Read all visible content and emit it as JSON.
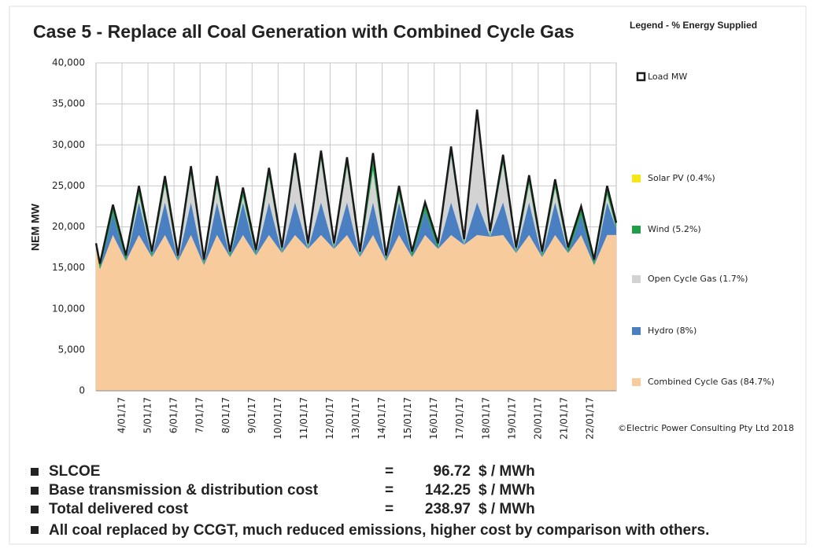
{
  "chart_data": {
    "type": "stacked-area",
    "title": "Case 5 - Replace all Coal Generation with Combined Cycle Gas",
    "y_label": "NEM MW",
    "legend_title": "Legend - % Energy Supplied",
    "credit": "©Electric Power Consulting Pty Ltd 2018",
    "xlim": [
      3,
      23
    ],
    "xticks": [
      {
        "value": 4,
        "label": "4/01/17"
      },
      {
        "value": 5,
        "label": "5/01/17"
      },
      {
        "value": 6,
        "label": "6/01/17"
      },
      {
        "value": 7,
        "label": "7/01/17"
      },
      {
        "value": 8,
        "label": "8/01/17"
      },
      {
        "value": 9,
        "label": "9/01/17"
      },
      {
        "value": 10,
        "label": "10/01/17"
      },
      {
        "value": 11,
        "label": "11/01/17"
      },
      {
        "value": 12,
        "label": "12/01/17"
      },
      {
        "value": 13,
        "label": "13/01/17"
      },
      {
        "value": 14,
        "label": "14/01/17"
      },
      {
        "value": 15,
        "label": "15/01/17"
      },
      {
        "value": 16,
        "label": "16/01/17"
      },
      {
        "value": 17,
        "label": "17/01/17"
      },
      {
        "value": 18,
        "label": "18/01/17"
      },
      {
        "value": 19,
        "label": "19/01/17"
      },
      {
        "value": 20,
        "label": "20/01/17"
      },
      {
        "value": 21,
        "label": "21/01/17"
      },
      {
        "value": 22,
        "label": "22/01/17"
      }
    ],
    "ylim": [
      0,
      40000
    ],
    "yticks": [
      0,
      {
        "value": 5000,
        "label": "5,000"
      },
      {
        "value": 10000,
        "label": "10,000"
      },
      {
        "value": 15000,
        "label": "15,000"
      },
      {
        "value": 20000,
        "label": "20,000"
      },
      {
        "value": 25000,
        "label": "25,000"
      },
      {
        "value": 30000,
        "label": "30,000"
      },
      {
        "value": 35000,
        "label": "35,000"
      },
      {
        "value": 40000,
        "label": "40,000"
      }
    ],
    "grid": true,
    "x": [
      3,
      3.15,
      3.65,
      4.15,
      4.65,
      5.15,
      5.65,
      6.15,
      6.65,
      7.15,
      7.65,
      8.15,
      8.65,
      9.15,
      9.65,
      10.15,
      10.65,
      11.15,
      11.65,
      12.15,
      12.65,
      13.15,
      13.65,
      14.15,
      14.65,
      15.15,
      15.65,
      16.15,
      16.65,
      17.15,
      17.65,
      18.15,
      18.65,
      19.15,
      19.65,
      20.15,
      20.65,
      21.15,
      21.65,
      22.15,
      22.65,
      23
    ],
    "series": [
      {
        "name": "Combined Cycle Gas (84.7%)",
        "color": "#f8cb9c",
        "values": [
          17300,
          14800,
          19000,
          15800,
          19000,
          16300,
          19000,
          15800,
          19000,
          15300,
          19000,
          16300,
          19000,
          16500,
          19000,
          16800,
          19000,
          17300,
          19000,
          17300,
          19000,
          16300,
          19000,
          15800,
          19000,
          16300,
          19000,
          17300,
          19000,
          17800,
          19000,
          18800,
          19000,
          16800,
          19000,
          16300,
          19000,
          16800,
          19000,
          15300,
          19000,
          19000
        ]
      },
      {
        "name": "Hydro (8%)",
        "color": "#4a7fc1",
        "values": [
          0,
          0,
          2600,
          0,
          4000,
          0,
          4000,
          0,
          4000,
          0,
          4000,
          0,
          4000,
          0,
          4000,
          0,
          4000,
          0,
          4000,
          0,
          4000,
          0,
          4000,
          0,
          4000,
          0,
          2900,
          0,
          4000,
          0,
          4000,
          0,
          4000,
          0,
          4000,
          0,
          4000,
          0,
          2400,
          0,
          4000,
          800
        ]
      },
      {
        "name": "Open Cycle Gas (1.7%)",
        "color": "#d3d3d3",
        "values": [
          0,
          0,
          0,
          0,
          900,
          0,
          2100,
          0,
          3300,
          0,
          2100,
          0,
          700,
          0,
          3100,
          0,
          4900,
          0,
          5200,
          0,
          4400,
          0,
          3900,
          0,
          900,
          0,
          0,
          0,
          5700,
          0,
          10200,
          0,
          4700,
          0,
          2200,
          0,
          1700,
          0,
          0,
          0,
          900,
          0
        ]
      },
      {
        "name": "Wind (5.2%)",
        "color": "#1f9e48",
        "values": [
          700,
          700,
          1000,
          700,
          1000,
          700,
          1000,
          700,
          1000,
          700,
          1000,
          700,
          1000,
          700,
          1000,
          700,
          1000,
          700,
          1000,
          700,
          1000,
          700,
          2000,
          700,
          1000,
          700,
          1000,
          700,
          1000,
          700,
          1000,
          700,
          1000,
          700,
          1000,
          700,
          1000,
          700,
          1000,
          700,
          1000,
          700
        ]
      },
      {
        "name": "Solar PV (0.4%)",
        "color": "#f5e616",
        "values": [
          0,
          0,
          100,
          0,
          100,
          0,
          100,
          0,
          100,
          0,
          100,
          0,
          100,
          0,
          100,
          0,
          100,
          0,
          100,
          0,
          100,
          0,
          100,
          0,
          100,
          0,
          100,
          0,
          100,
          0,
          100,
          0,
          100,
          0,
          100,
          0,
          100,
          0,
          100,
          0,
          100,
          0
        ]
      }
    ],
    "load": {
      "name": "Load MW",
      "color": "#1a1a1a",
      "values": [
        18000,
        15500,
        22700,
        16500,
        25000,
        17000,
        26200,
        16500,
        27400,
        16000,
        26200,
        17000,
        24800,
        17200,
        27200,
        17500,
        29000,
        18000,
        29300,
        18000,
        28500,
        17000,
        29000,
        16500,
        25000,
        17000,
        23000,
        18000,
        29800,
        18500,
        34300,
        19500,
        28800,
        17500,
        26300,
        17000,
        25800,
        17500,
        22500,
        16000,
        25000,
        20500
      ]
    }
  },
  "notes": [
    {
      "label": "SLCOE",
      "eq": "=",
      "value": "96.72",
      "unit": "$ / MWh"
    },
    {
      "label": "Base transmission & distribution  cost",
      "eq": "=",
      "value": "142.25",
      "unit": "$ / MWh"
    },
    {
      "label": "Total delivered cost",
      "eq": "=",
      "value": "238.97",
      "unit": "$ / MWh"
    }
  ],
  "summary": "All coal replaced by CCGT, much reduced emissions, higher cost by comparison with others."
}
